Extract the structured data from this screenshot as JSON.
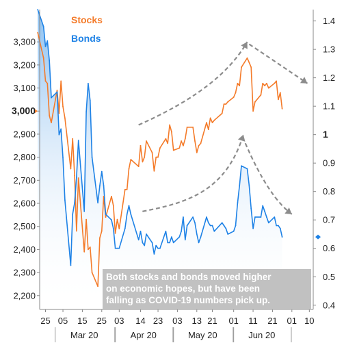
{
  "chart_data": {
    "type": "line",
    "title": "",
    "xlabel": "",
    "left_axis": {
      "ylim": [
        2140,
        3440
      ],
      "ticks": [
        "2,200",
        "2,300",
        "2,400",
        "2,500",
        "2,600",
        "2,700",
        "2,800",
        "2,900",
        "3,000",
        "3,100",
        "3,200",
        "3,300"
      ],
      "tick_values": [
        2200,
        2300,
        2400,
        2500,
        2600,
        2700,
        2800,
        2900,
        3000,
        3100,
        3200,
        3300
      ],
      "highlight": "3,000"
    },
    "right_axis": {
      "ylim": [
        0.385,
        1.44
      ],
      "ticks": [
        "0.4",
        "0.5",
        "0.6",
        "0.7",
        "0.8",
        "0.9",
        "1",
        "1.1",
        "1.2",
        "1.3",
        "1.4"
      ],
      "tick_values": [
        0.4,
        0.5,
        0.6,
        0.7,
        0.8,
        0.9,
        1.0,
        1.1,
        1.2,
        1.3,
        1.4
      ],
      "highlight": "1"
    },
    "x_axis": {
      "start": "2020-02-22",
      "end": "2020-07-12",
      "tick_labels": [
        "25",
        "05",
        "15",
        "25",
        "03",
        "14",
        "23",
        "03",
        "13",
        "21",
        "01",
        "11",
        "21",
        "01",
        "10"
      ],
      "tick_dates": [
        "2020-02-25",
        "2020-03-05",
        "2020-03-15",
        "2020-03-25",
        "2020-04-03",
        "2020-04-14",
        "2020-04-23",
        "2020-05-03",
        "2020-05-13",
        "2020-05-21",
        "2020-06-01",
        "2020-06-11",
        "2020-06-21",
        "2020-07-01",
        "2020-07-10"
      ],
      "months": [
        {
          "label": "Mar 20",
          "start": "2020-03-01",
          "end": "2020-03-31"
        },
        {
          "label": "Apr 20",
          "start": "2020-04-01",
          "end": "2020-04-30"
        },
        {
          "label": "May 20",
          "start": "2020-05-01",
          "end": "2020-05-31"
        },
        {
          "label": "Jun 20",
          "start": "2020-06-01",
          "end": "2020-06-30"
        }
      ]
    },
    "series": [
      {
        "name": "Stocks",
        "axis": "left",
        "color": "#F47B2A",
        "x": [
          "2020-02-21",
          "2020-02-24",
          "2020-02-25",
          "2020-02-26",
          "2020-02-27",
          "2020-02-28",
          "2020-03-02",
          "2020-03-03",
          "2020-03-04",
          "2020-03-05",
          "2020-03-06",
          "2020-03-09",
          "2020-03-10",
          "2020-03-11",
          "2020-03-12",
          "2020-03-13",
          "2020-03-16",
          "2020-03-17",
          "2020-03-18",
          "2020-03-19",
          "2020-03-20",
          "2020-03-23",
          "2020-03-24",
          "2020-03-25",
          "2020-03-26",
          "2020-03-27",
          "2020-03-30",
          "2020-03-31",
          "2020-04-01",
          "2020-04-02",
          "2020-04-03",
          "2020-04-06",
          "2020-04-07",
          "2020-04-08",
          "2020-04-09",
          "2020-04-13",
          "2020-04-14",
          "2020-04-15",
          "2020-04-16",
          "2020-04-17",
          "2020-04-20",
          "2020-04-21",
          "2020-04-22",
          "2020-04-23",
          "2020-04-24",
          "2020-04-27",
          "2020-04-28",
          "2020-04-29",
          "2020-04-30",
          "2020-05-01",
          "2020-05-04",
          "2020-05-05",
          "2020-05-06",
          "2020-05-07",
          "2020-05-08",
          "2020-05-11",
          "2020-05-12",
          "2020-05-13",
          "2020-05-14",
          "2020-05-15",
          "2020-05-18",
          "2020-05-19",
          "2020-05-20",
          "2020-05-21",
          "2020-05-22",
          "2020-05-26",
          "2020-05-27",
          "2020-05-28",
          "2020-05-29",
          "2020-06-01",
          "2020-06-02",
          "2020-06-03",
          "2020-06-04",
          "2020-06-05",
          "2020-06-08",
          "2020-06-09",
          "2020-06-10",
          "2020-06-11",
          "2020-06-12",
          "2020-06-15",
          "2020-06-16",
          "2020-06-17",
          "2020-06-18",
          "2020-06-19",
          "2020-06-22",
          "2020-06-23",
          "2020-06-24",
          "2020-06-25",
          "2020-06-26"
        ],
        "values": [
          3340,
          3230,
          3130,
          3120,
          2980,
          2950,
          3090,
          2990,
          3130,
          3020,
          2970,
          2750,
          2880,
          2720,
          2480,
          2710,
          2390,
          2530,
          2400,
          2410,
          2300,
          2240,
          2450,
          2480,
          2630,
          2540,
          2630,
          2590,
          2470,
          2530,
          2490,
          2660,
          2660,
          2750,
          2790,
          2760,
          2850,
          2780,
          2800,
          2870,
          2820,
          2740,
          2800,
          2800,
          2840,
          2880,
          2860,
          2940,
          2910,
          2830,
          2840,
          2870,
          2850,
          2880,
          2930,
          2930,
          2870,
          2820,
          2850,
          2860,
          2950,
          2920,
          2970,
          2950,
          2960,
          2990,
          3030,
          3030,
          3040,
          3060,
          3080,
          3120,
          3110,
          3190,
          3230,
          3210,
          3190,
          3000,
          3040,
          3070,
          3120,
          3110,
          3120,
          3100,
          3120,
          3130,
          3050,
          3080,
          3010
        ]
      },
      {
        "name": "Bonds",
        "axis": "right",
        "color": "#1E82E6",
        "x": [
          "2020-02-21",
          "2020-02-24",
          "2020-02-25",
          "2020-02-26",
          "2020-02-27",
          "2020-02-28",
          "2020-03-02",
          "2020-03-03",
          "2020-03-04",
          "2020-03-05",
          "2020-03-06",
          "2020-03-09",
          "2020-03-10",
          "2020-03-11",
          "2020-03-12",
          "2020-03-13",
          "2020-03-16",
          "2020-03-17",
          "2020-03-18",
          "2020-03-19",
          "2020-03-20",
          "2020-03-23",
          "2020-03-24",
          "2020-03-25",
          "2020-03-26",
          "2020-03-27",
          "2020-03-30",
          "2020-03-31",
          "2020-04-01",
          "2020-04-02",
          "2020-04-03",
          "2020-04-06",
          "2020-04-07",
          "2020-04-08",
          "2020-04-09",
          "2020-04-13",
          "2020-04-14",
          "2020-04-15",
          "2020-04-16",
          "2020-04-17",
          "2020-04-20",
          "2020-04-21",
          "2020-04-22",
          "2020-04-23",
          "2020-04-24",
          "2020-04-27",
          "2020-04-28",
          "2020-04-29",
          "2020-04-30",
          "2020-05-01",
          "2020-05-04",
          "2020-05-05",
          "2020-05-06",
          "2020-05-07",
          "2020-05-08",
          "2020-05-11",
          "2020-05-12",
          "2020-05-13",
          "2020-05-14",
          "2020-05-15",
          "2020-05-18",
          "2020-05-19",
          "2020-05-20",
          "2020-05-21",
          "2020-05-22",
          "2020-05-26",
          "2020-05-27",
          "2020-05-28",
          "2020-05-29",
          "2020-06-01",
          "2020-06-02",
          "2020-06-03",
          "2020-06-04",
          "2020-06-05",
          "2020-06-08",
          "2020-06-09",
          "2020-06-10",
          "2020-06-11",
          "2020-06-12",
          "2020-06-15",
          "2020-06-16",
          "2020-06-17",
          "2020-06-18",
          "2020-06-19",
          "2020-06-22",
          "2020-06-23",
          "2020-06-24",
          "2020-06-25",
          "2020-06-26"
        ],
        "values": [
          1.44,
          1.38,
          1.31,
          1.33,
          1.26,
          1.13,
          1.15,
          1.0,
          1.02,
          0.92,
          0.77,
          0.54,
          0.72,
          0.76,
          0.85,
          0.98,
          0.73,
          1.08,
          1.18,
          1.12,
          0.92,
          0.76,
          0.82,
          0.87,
          0.82,
          0.72,
          0.7,
          0.67,
          0.6,
          0.6,
          0.6,
          0.67,
          0.72,
          0.75,
          0.72,
          0.63,
          0.66,
          0.62,
          0.61,
          0.65,
          0.62,
          0.58,
          0.61,
          0.6,
          0.6,
          0.66,
          0.62,
          0.62,
          0.64,
          0.62,
          0.64,
          0.66,
          0.71,
          0.63,
          0.68,
          0.71,
          0.69,
          0.65,
          0.62,
          0.64,
          0.71,
          0.69,
          0.68,
          0.68,
          0.66,
          0.69,
          0.68,
          0.67,
          0.65,
          0.66,
          0.68,
          0.76,
          0.82,
          0.89,
          0.88,
          0.82,
          0.74,
          0.67,
          0.71,
          0.71,
          0.75,
          0.73,
          0.71,
          0.69,
          0.71,
          0.68,
          0.68,
          0.67,
          0.64
        ]
      }
    ],
    "legend": {
      "position": "top-left",
      "entries": [
        "Stocks",
        "Bonds"
      ]
    },
    "annotation": "Both stocks and bonds moved higher on economic hopes, but have been falling as COVID-19 numbers pick up.",
    "annotation_lines": [
      "Both stocks and bonds moved higher",
      "on economic hopes, but have been",
      "falling as COVID-19 numbers pick up."
    ],
    "trend_arrows": [
      {
        "series": "Stocks",
        "points": [
          [
            "2020-04-13",
            2940
          ],
          [
            "2020-05-07",
            3030
          ],
          [
            "2020-05-28",
            3140
          ],
          [
            "2020-06-08",
            3300
          ]
        ]
      },
      {
        "series": "Stocks",
        "points": [
          [
            "2020-06-09",
            3290
          ],
          [
            "2020-06-25",
            3200
          ],
          [
            "2020-07-09",
            3120
          ]
        ]
      },
      {
        "series": "Bonds",
        "points": [
          [
            "2020-04-15",
            0.73
          ],
          [
            "2020-05-08",
            0.76
          ],
          [
            "2020-05-28",
            0.8
          ],
          [
            "2020-06-06",
            1.0
          ]
        ]
      },
      {
        "series": "Bonds",
        "points": [
          [
            "2020-06-07",
            0.97
          ],
          [
            "2020-06-19",
            0.78
          ],
          [
            "2020-07-01",
            0.72
          ]
        ]
      }
    ],
    "grid": false
  }
}
